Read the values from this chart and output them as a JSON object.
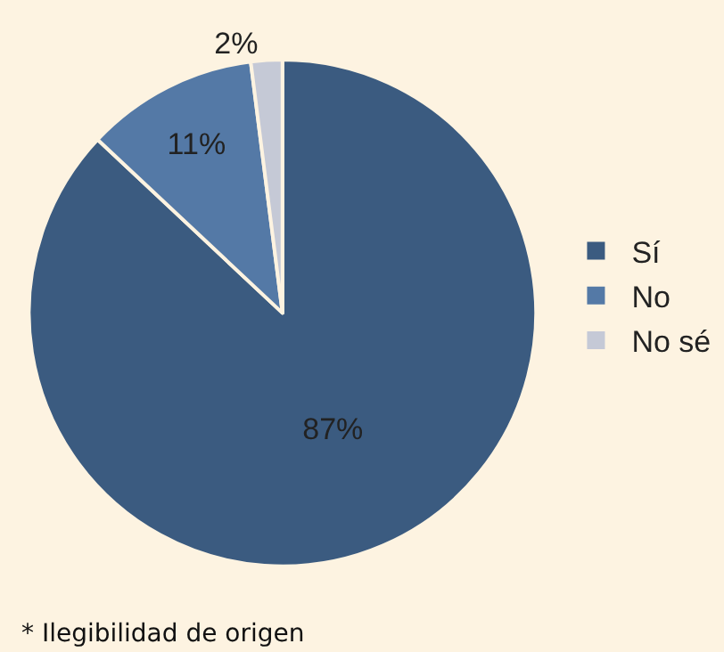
{
  "chart_data": {
    "type": "pie",
    "categories": [
      "Sí",
      "No",
      "No sé"
    ],
    "values": [
      87,
      11,
      2
    ],
    "value_labels": [
      "87%",
      "11%",
      "2%"
    ],
    "colors": [
      "#3b5b80",
      "#5479a6",
      "#c5c9d6"
    ],
    "legend": "right",
    "annotations": [
      "* Ilegibilidad de origen"
    ]
  }
}
